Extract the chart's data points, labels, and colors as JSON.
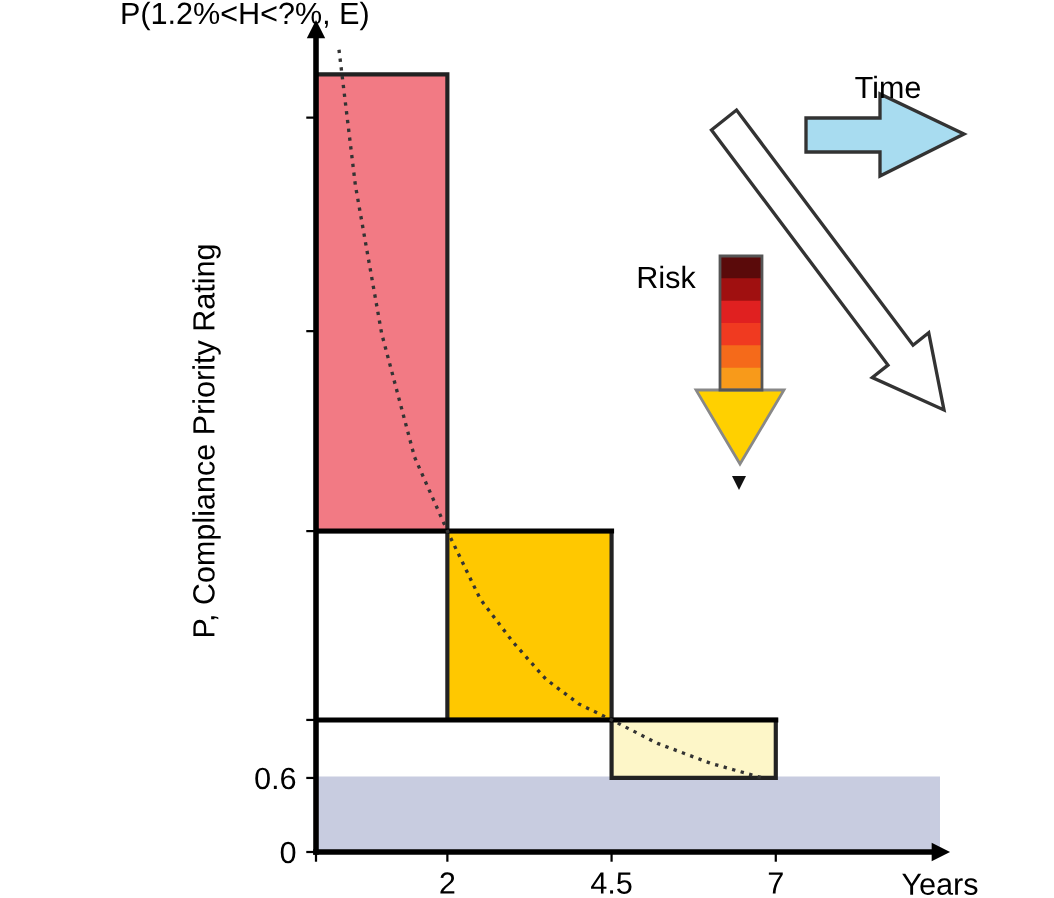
{
  "chart_data": {
    "type": "bar",
    "base": [
      2.6,
      1.07,
      0.6
    ],
    "x": [
      1,
      3.25,
      5.75
    ],
    "values": [
      3.7,
      1.53,
      0.47
    ],
    "colors": [
      "#f27a84",
      "#ffc800",
      "#fdf6c8"
    ],
    "xlabel": "Years",
    "ylabel": "P, Compliance Priority Rating",
    "annotations": [
      "P(1.2%<H<?%, E)",
      "Time",
      "Risk"
    ],
    "series": [
      {
        "type": "line",
        "color": "#000000",
        "x": [
          0,
          4.5
        ],
        "values": [
          2.6,
          2.6
        ],
        "line_style": "solid"
      },
      {
        "type": "line",
        "color": "#000000",
        "x": [
          0,
          7
        ],
        "values": [
          1.07,
          1.07
        ],
        "line_style": "solid"
      },
      {
        "type": "line",
        "color": "#333333",
        "line_style": "dotted",
        "x": [
          0.35,
          0.6,
          1,
          1.5,
          2,
          2.5,
          3,
          3.5,
          4,
          4.5,
          5.2,
          6,
          6.8
        ],
        "values": [
          6.5,
          5.4,
          4.2,
          3.2,
          2.6,
          2.05,
          1.7,
          1.4,
          1.2,
          1.07,
          0.88,
          0.72,
          0.6
        ]
      }
    ],
    "bands": [
      {
        "axis": "y",
        "from": 0,
        "to": 0.6,
        "color": "#c8cce0"
      }
    ],
    "xlim": [
      0,
      9.5
    ],
    "ylim": [
      0,
      6.66
    ],
    "xticks": [
      {
        "value": 0,
        "label": null
      },
      2,
      4.5,
      7
    ],
    "yticks": [
      0,
      0.6,
      {
        "value": 1.07,
        "label": null
      },
      {
        "value": 2.6,
        "label": null
      },
      {
        "value": 4.22,
        "label": null
      },
      {
        "value": 5.95,
        "label": null
      }
    ],
    "grid": false,
    "legend": false,
    "marker": "none"
  }
}
